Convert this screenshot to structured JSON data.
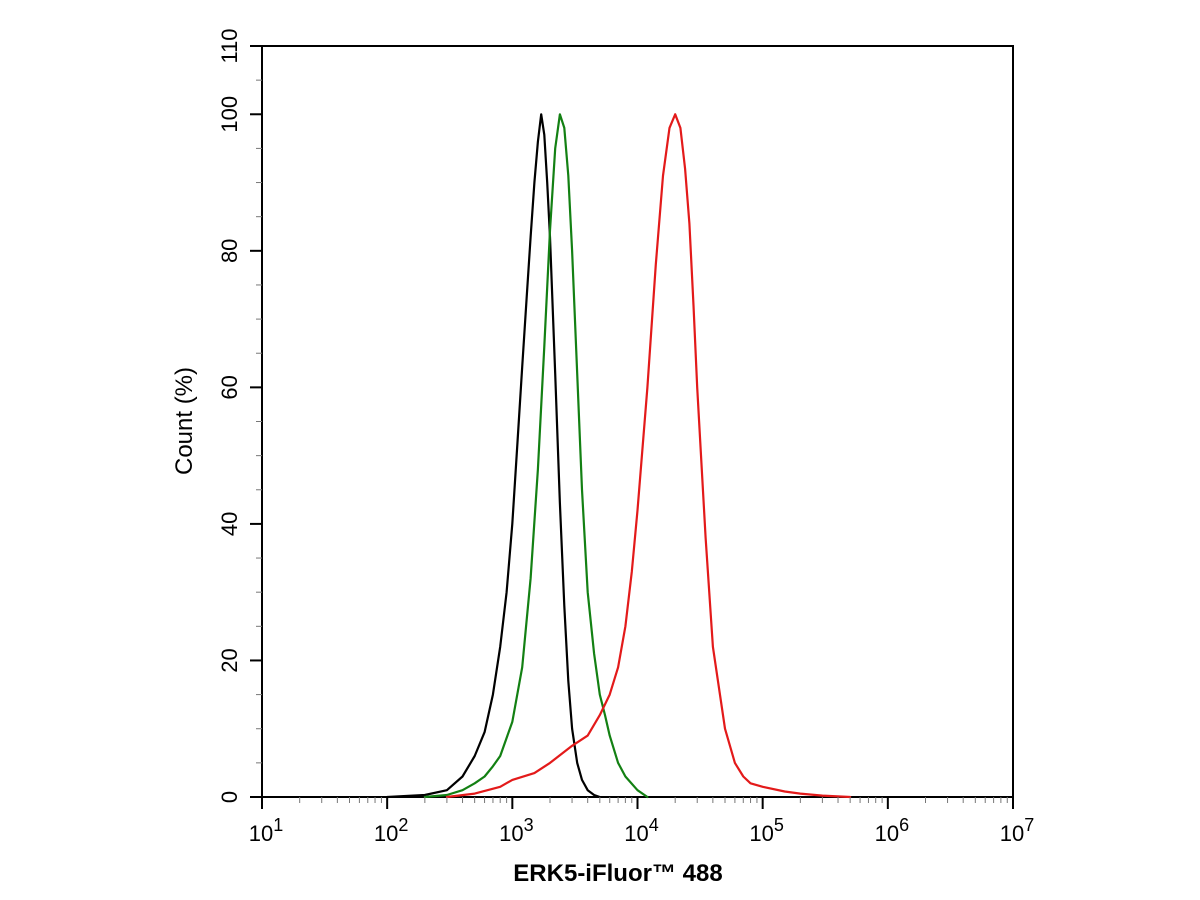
{
  "chart_data": {
    "type": "line",
    "title": "",
    "xlabel": "ERK5-iFluor™ 488",
    "ylabel": "Count  (%)",
    "x_scale": "log",
    "xlim": [
      10,
      10000000
    ],
    "ylim": [
      0,
      110
    ],
    "grid": false,
    "x_ticks": [
      {
        "value": 10,
        "base": "10",
        "exp": "1"
      },
      {
        "value": 100,
        "base": "10",
        "exp": "2"
      },
      {
        "value": 1000,
        "base": "10",
        "exp": "3"
      },
      {
        "value": 10000,
        "base": "10",
        "exp": "4"
      },
      {
        "value": 100000,
        "base": "10",
        "exp": "5"
      },
      {
        "value": 1000000,
        "base": "10",
        "exp": "6"
      },
      {
        "value": 10000000,
        "base": "10",
        "exp": "7"
      }
    ],
    "y_ticks": [
      0,
      20,
      40,
      60,
      80,
      100,
      110
    ],
    "series": [
      {
        "color": "#000000",
        "x": [
          100,
          200,
          300,
          400,
          500,
          600,
          700,
          800,
          900,
          1000,
          1100,
          1200,
          1300,
          1400,
          1500,
          1600,
          1700,
          1800,
          1900,
          2000,
          2200,
          2400,
          2600,
          2800,
          3000,
          3300,
          3600,
          4000,
          4500,
          5000
        ],
        "y": [
          0,
          0.3,
          1,
          3,
          6,
          9.5,
          15,
          22,
          30,
          40,
          52,
          63,
          73,
          82,
          90,
          96,
          100,
          97,
          90,
          82,
          62,
          43,
          28,
          17,
          10,
          5,
          2.5,
          1,
          0.3,
          0
        ]
      },
      {
        "color": "#138013",
        "x": [
          200,
          300,
          400,
          500,
          600,
          700,
          800,
          1000,
          1200,
          1400,
          1600,
          1800,
          2000,
          2200,
          2400,
          2600,
          2800,
          3000,
          3300,
          3600,
          4000,
          4500,
          5000,
          5500,
          6000,
          7000,
          8000,
          10000,
          12000
        ],
        "y": [
          0,
          0.3,
          1,
          2,
          3,
          4.5,
          6,
          11,
          19,
          32,
          48,
          66,
          83,
          95,
          100,
          98,
          91,
          80,
          62,
          45,
          30,
          21,
          15,
          12,
          9,
          5,
          3,
          1,
          0
        ]
      },
      {
        "color": "#e31a1a",
        "x": [
          300,
          500,
          800,
          1000,
          1500,
          2000,
          3000,
          4000,
          5000,
          6000,
          7000,
          8000,
          9000,
          10000,
          12000,
          14000,
          16000,
          18000,
          20000,
          22000,
          24000,
          26000,
          28000,
          30000,
          35000,
          40000,
          50000,
          60000,
          70000,
          80000,
          100000,
          150000,
          200000,
          300000,
          500000
        ],
        "y": [
          0,
          0.5,
          1.5,
          2.5,
          3.5,
          5,
          7.5,
          9,
          12,
          15,
          19,
          25,
          33,
          42,
          60,
          78,
          91,
          98,
          100,
          98,
          92,
          84,
          72,
          60,
          38,
          22,
          10,
          5,
          3,
          2,
          1.5,
          0.8,
          0.5,
          0.2,
          0
        ]
      }
    ]
  }
}
